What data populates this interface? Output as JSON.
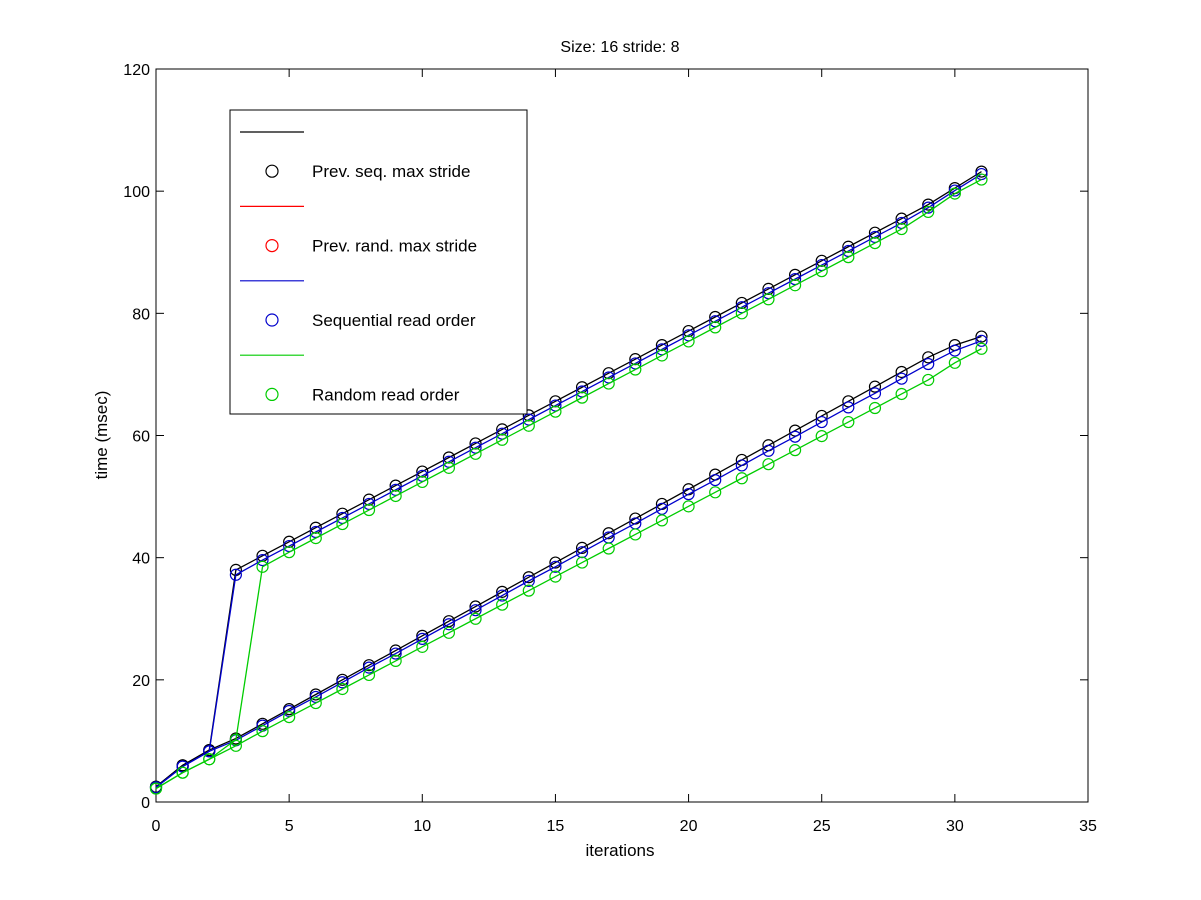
{
  "chart_data": {
    "type": "line",
    "title": "Size: 16 stride: 8",
    "xlabel": "iterations",
    "ylabel": "time (msec)",
    "xlim": [
      0,
      35
    ],
    "ylim": [
      0,
      120
    ],
    "xticks": [
      0,
      5,
      10,
      15,
      20,
      25,
      30,
      35
    ],
    "yticks": [
      0,
      20,
      40,
      60,
      80,
      100,
      120
    ],
    "grid": false,
    "legend_position": "top-left",
    "legend": [
      {
        "label": "",
        "color": "#000000",
        "marker": "line"
      },
      {
        "label": "Prev. seq. max stride",
        "color": "#000000",
        "marker": "circle"
      },
      {
        "label": "",
        "color": "#ff0000",
        "marker": "line"
      },
      {
        "label": "Prev. rand. max stride",
        "color": "#ff0000",
        "marker": "circle"
      },
      {
        "label": "",
        "color": "#0000cc",
        "marker": "line"
      },
      {
        "label": "Sequential read order",
        "color": "#0000cc",
        "marker": "circle"
      },
      {
        "label": "",
        "color": "#00cc00",
        "marker": "line"
      },
      {
        "label": "Random read order",
        "color": "#00cc00",
        "marker": "circle"
      }
    ],
    "x": [
      0,
      1,
      2,
      3,
      4,
      5,
      6,
      7,
      8,
      9,
      10,
      11,
      12,
      13,
      14,
      15,
      16,
      17,
      18,
      19,
      20,
      21,
      22,
      23,
      24,
      25,
      26,
      27,
      28,
      29,
      30,
      31
    ],
    "series": [
      {
        "color": "#000000",
        "values": [
          2.5,
          6.0,
          8.5,
          38.0,
          40.3,
          42.6,
          44.9,
          47.2,
          49.5,
          51.8,
          54.1,
          56.4,
          58.7,
          61.0,
          63.3,
          65.6,
          67.9,
          70.2,
          72.5,
          74.8,
          77.1,
          79.4,
          81.7,
          84.0,
          86.3,
          88.6,
          90.9,
          93.2,
          95.5,
          97.8,
          100.5,
          103.2
        ]
      },
      {
        "color": "#000000",
        "values": [
          2.5,
          6.0,
          8.5,
          10.4,
          12.8,
          15.2,
          17.6,
          20.0,
          22.4,
          24.8,
          27.2,
          29.6,
          32.0,
          34.4,
          36.8,
          39.2,
          41.6,
          44.0,
          46.4,
          48.8,
          51.2,
          53.6,
          56.0,
          58.4,
          60.8,
          63.2,
          65.6,
          68.0,
          70.4,
          72.8,
          74.8,
          76.2
        ]
      },
      {
        "color": "#0000cc",
        "values": [
          2.4,
          5.8,
          8.3,
          37.2,
          39.6,
          41.9,
          44.2,
          46.5,
          48.8,
          51.1,
          53.4,
          55.7,
          58.0,
          60.3,
          62.6,
          64.9,
          67.2,
          69.5,
          71.8,
          74.1,
          76.4,
          78.7,
          81.0,
          83.3,
          85.6,
          87.9,
          90.2,
          92.5,
          94.8,
          97.3,
          100.1,
          102.8
        ]
      },
      {
        "color": "#0000cc",
        "values": [
          2.4,
          5.8,
          8.3,
          10.1,
          12.5,
          14.9,
          17.2,
          19.6,
          22.0,
          24.3,
          26.7,
          29.1,
          31.4,
          33.8,
          36.2,
          38.5,
          40.9,
          43.3,
          45.6,
          48.0,
          50.4,
          52.7,
          55.1,
          57.5,
          59.8,
          62.2,
          64.6,
          66.9,
          69.3,
          71.7,
          73.9,
          75.5
        ]
      },
      {
        "color": "#00cc00",
        "values": [
          2.2,
          4.8,
          7.0,
          10.2,
          38.5,
          40.9,
          43.2,
          45.5,
          47.8,
          50.1,
          52.4,
          54.7,
          57.0,
          59.3,
          61.6,
          63.9,
          66.2,
          68.5,
          70.8,
          73.1,
          75.4,
          77.7,
          80.0,
          82.3,
          84.6,
          86.9,
          89.2,
          91.5,
          93.8,
          96.6,
          99.6,
          101.9
        ]
      },
      {
        "color": "#00cc00",
        "values": [
          2.2,
          4.8,
          7.0,
          9.2,
          11.6,
          13.9,
          16.2,
          18.5,
          20.8,
          23.1,
          25.4,
          27.7,
          30.0,
          32.3,
          34.6,
          36.9,
          39.2,
          41.5,
          43.8,
          46.1,
          48.4,
          50.7,
          53.0,
          55.3,
          57.6,
          59.9,
          62.2,
          64.5,
          66.8,
          69.1,
          71.9,
          74.2
        ]
      }
    ]
  }
}
